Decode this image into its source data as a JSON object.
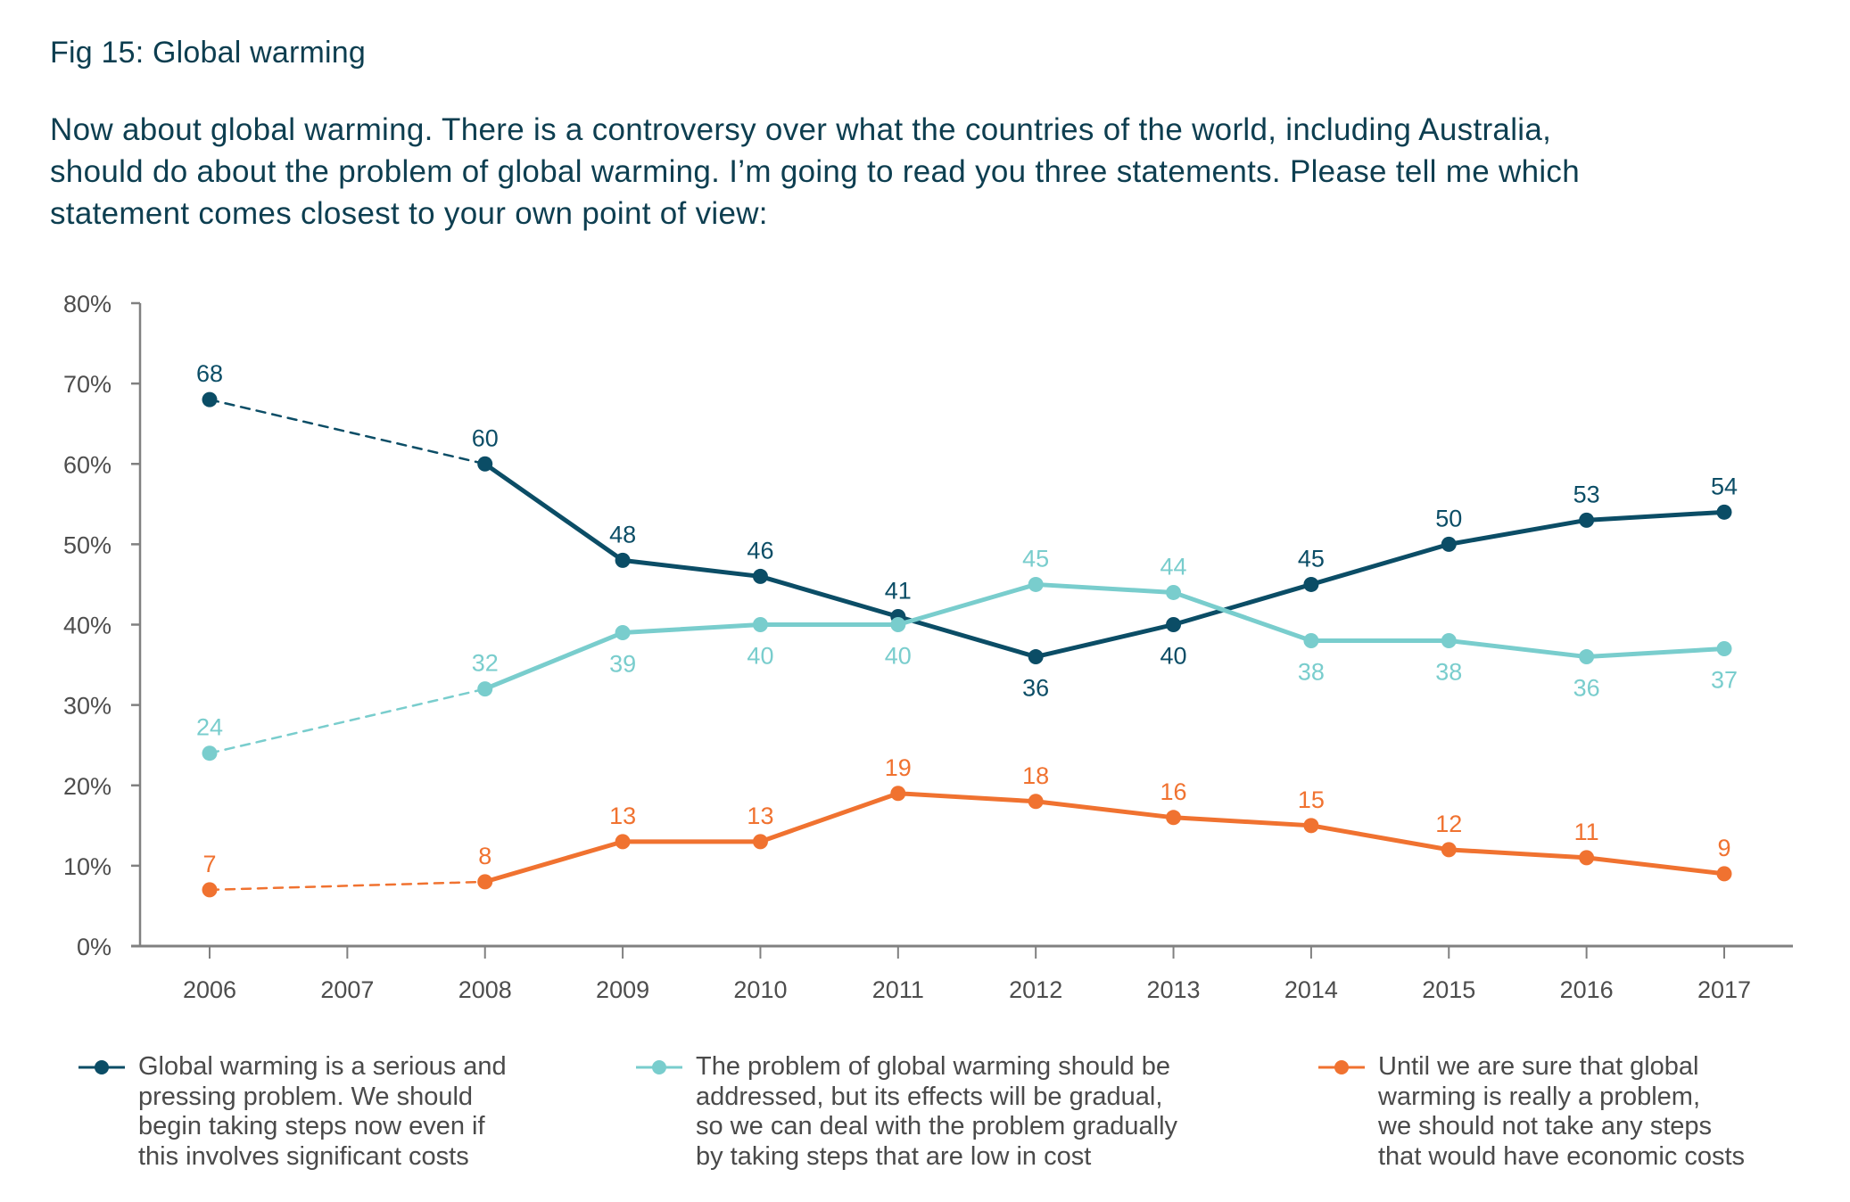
{
  "title": "Fig 15: Global warming",
  "question_lines": [
    "Now about global warming. There is a controversy over what the countries of the world, including Australia,",
    "should do about the problem of global warming. I’m going to read you three statements. Please tell me which",
    "statement comes closest to your own point of view:"
  ],
  "colors": {
    "serious": "#0b4d66",
    "gradual": "#79cdcd",
    "not_sure": "#f07230",
    "axis": "#808080",
    "text": "#4a4a4a",
    "title": "#0d3e50"
  },
  "chart_data": {
    "type": "line",
    "title": "Fig 15: Global warming",
    "xlabel": "",
    "ylabel": "",
    "x": [
      "2006",
      "2007",
      "2008",
      "2009",
      "2010",
      "2011",
      "2012",
      "2013",
      "2014",
      "2015",
      "2016",
      "2017"
    ],
    "ylim": [
      0,
      80
    ],
    "yticks": [
      "0%",
      "10%",
      "20%",
      "30%",
      "40%",
      "50%",
      "60%",
      "70%",
      "80%"
    ],
    "ytick_values": [
      0,
      10,
      20,
      30,
      40,
      50,
      60,
      70,
      80
    ],
    "grid": false,
    "legend_position": "bottom",
    "note": "Segment 2006–2008 drawn dashed (no 2007 data)",
    "series": [
      {
        "key": "serious",
        "name": "Global warming is a serious and pressing problem. We should begin taking steps now even if this involves significant costs",
        "legend_lines": [
          "Global warming is a serious and",
          "pressing problem. We should",
          "begin taking steps now even if",
          "this involves significant costs"
        ],
        "values": [
          68,
          null,
          60,
          48,
          46,
          41,
          36,
          40,
          45,
          50,
          53,
          54
        ],
        "label_positions": [
          "above",
          null,
          "above",
          "above",
          "above",
          "above",
          "below",
          "below",
          "above",
          "above",
          "above",
          "above"
        ]
      },
      {
        "key": "gradual",
        "name": "The problem of global warming should be addressed, but its effects will be gradual, so we can deal with the problem gradually by taking steps that are low in cost",
        "legend_lines": [
          "The problem of global warming should be",
          "addressed, but its effects will be gradual,",
          "so we can deal with the problem gradually",
          "by taking steps that are low in cost"
        ],
        "values": [
          24,
          null,
          32,
          39,
          40,
          40,
          45,
          44,
          38,
          38,
          36,
          37
        ],
        "label_positions": [
          "above",
          null,
          "above",
          "below",
          "below",
          "below",
          "above",
          "above",
          "below",
          "below",
          "below",
          "below"
        ]
      },
      {
        "key": "not_sure",
        "name": "Until we are sure that global warming is really a problem, we should not take any steps that would have economic costs",
        "legend_lines": [
          "Until we are sure that global",
          "warming is really a problem,",
          "we should not take any steps",
          "that would have economic costs"
        ],
        "values": [
          7,
          null,
          8,
          13,
          13,
          19,
          18,
          16,
          15,
          12,
          11,
          9
        ],
        "label_positions": [
          "above",
          null,
          "above",
          "above",
          "above",
          "above",
          "above",
          "above",
          "above",
          "above",
          "above",
          "above"
        ]
      }
    ]
  }
}
